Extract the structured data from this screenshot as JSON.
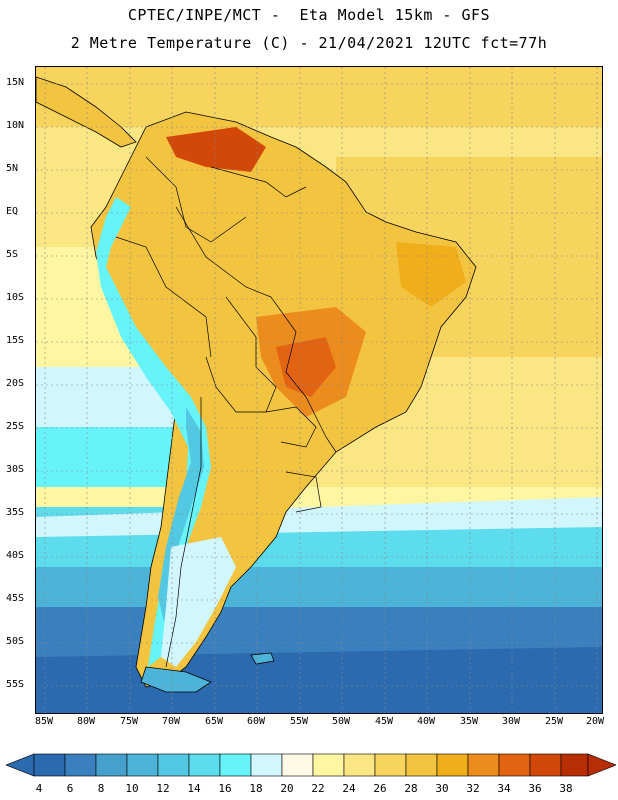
{
  "header": {
    "title_line1": "CPTEC/INPE/MCT -  Eta Model 15km - GFS",
    "title_line2": "2 Metre Temperature (C) - 21/04/2021 12UTC fct=77h"
  },
  "map": {
    "lat_labels": [
      "15N",
      "10N",
      "5N",
      "EQ",
      "5S",
      "10S",
      "15S",
      "20S",
      "25S",
      "30S",
      "35S",
      "40S",
      "45S",
      "50S",
      "55S"
    ],
    "lon_labels": [
      "85W",
      "80W",
      "75W",
      "70W",
      "65W",
      "60W",
      "55W",
      "50W",
      "45W",
      "40W",
      "35W",
      "30W",
      "25W",
      "20W"
    ],
    "grid_color": "#888888",
    "coast_color": "#000000"
  },
  "colorbar": {
    "labels": [
      "4",
      "6",
      "8",
      "10",
      "12",
      "14",
      "16",
      "18",
      "20",
      "22",
      "24",
      "26",
      "28",
      "30",
      "32",
      "34",
      "36",
      "38"
    ],
    "colors": [
      "#2c6ab0",
      "#3a80be",
      "#46a0cc",
      "#4cb4d8",
      "#52c8e2",
      "#5cdcec",
      "#66f4fa",
      "#d2f6fe",
      "#fefae6",
      "#fef6a0",
      "#fae682",
      "#f6d45e",
      "#f2c440",
      "#f0ae1a",
      "#ec8c1c",
      "#e26412",
      "#d24808",
      "#b82e04"
    ],
    "low_color": "#2c6ab0",
    "high_color": "#b82e04"
  }
}
